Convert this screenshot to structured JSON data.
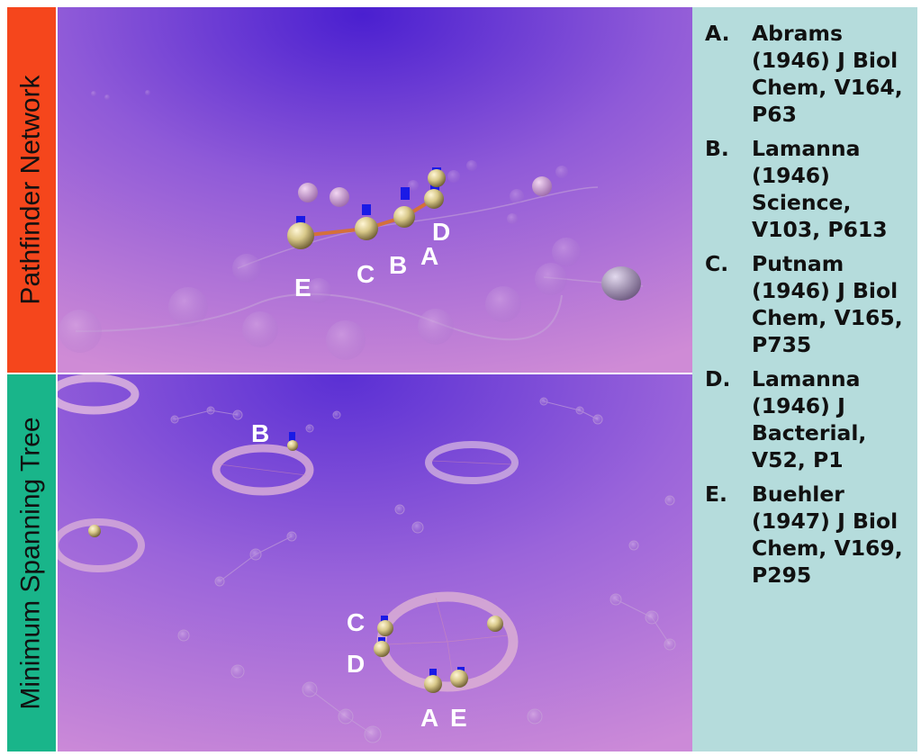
{
  "panels": {
    "top_label": "Pathfinder Network",
    "bottom_label": "Minimum Spanning Tree",
    "top_label_color": "#f5461c",
    "bottom_label_color": "#19b58a"
  },
  "top_node_labels": {
    "A": "A",
    "B": "B",
    "C": "C",
    "D": "D",
    "E": "E"
  },
  "bottom_node_labels": {
    "A": "A",
    "B": "B",
    "C": "C",
    "D": "D",
    "E": "E"
  },
  "legend": {
    "items": [
      {
        "letter": "A.",
        "text": "Abrams (1946) J Biol Chem, V164, P63"
      },
      {
        "letter": "B.",
        "text": "Lamanna (1946) Science, V103, P613"
      },
      {
        "letter": "C.",
        "text": "Putnam (1946) J Biol Chem, V165, P735"
      },
      {
        "letter": "D.",
        "text": "Lamanna (1946) J Bacterial, V52, P1"
      },
      {
        "letter": "E.",
        "text": "Buehler (1947) J Biol Chem, V169, P295"
      }
    ]
  },
  "colors": {
    "legend_bg": "#b5dcdc",
    "scene_light": "#cf8bd6",
    "scene_dark": "#4a1fd0",
    "node_gold": "#d9c98a",
    "path_orange": "#d4703a",
    "marker_blue": "#1a1ae6"
  }
}
